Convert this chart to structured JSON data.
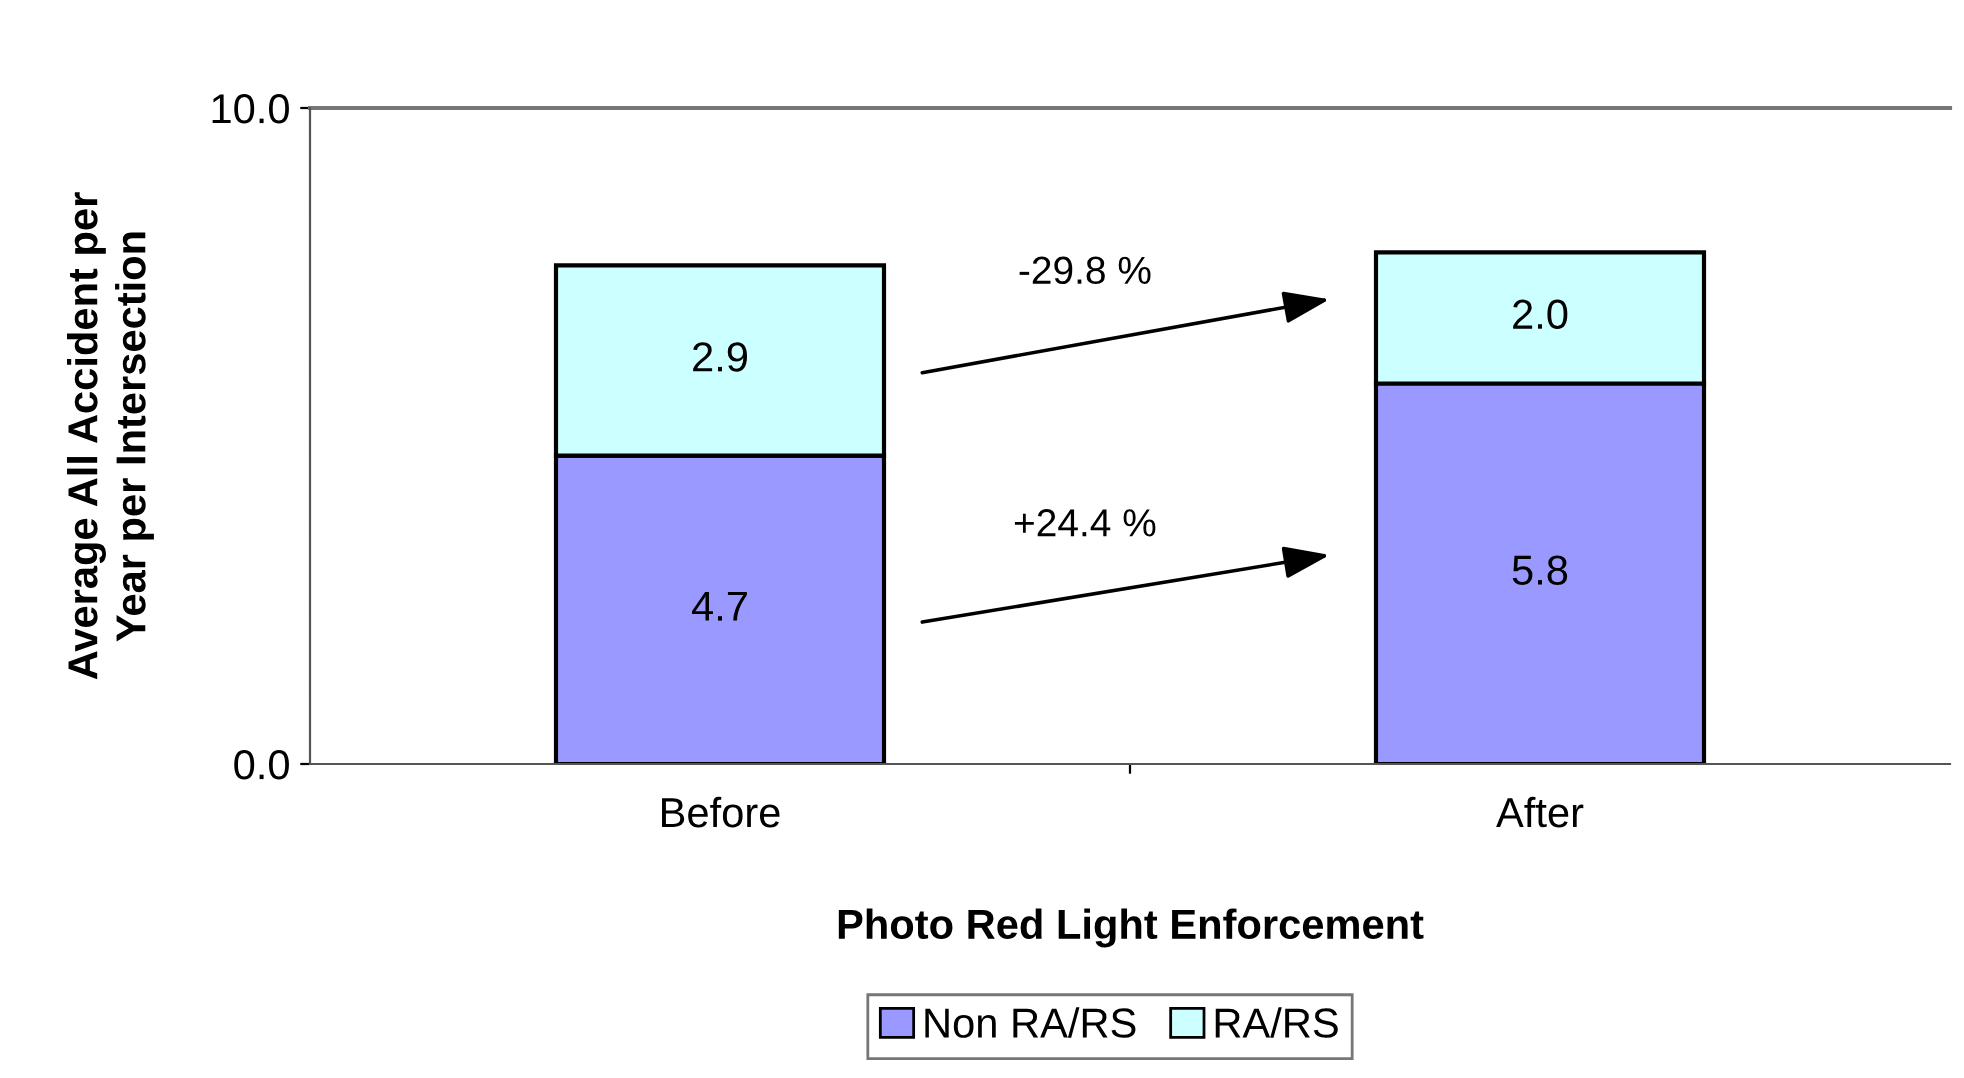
{
  "chart_data": {
    "type": "bar",
    "stacked": true,
    "categories": [
      "Before",
      "After"
    ],
    "series": [
      {
        "name": "Non RA/RS",
        "color": "#9999ff",
        "values": [
          4.7,
          5.8
        ],
        "value_labels": [
          "4.7",
          "5.8"
        ]
      },
      {
        "name": "RA/RS",
        "color": "#ccffff",
        "values": [
          2.9,
          2.0
        ],
        "value_labels": [
          "2.9",
          "2.0"
        ]
      }
    ],
    "xlabel": "Photo Red Light Enforcement",
    "ylabel": "Average All Accident per\nYear per Intersection",
    "ylim": [
      0,
      10
    ],
    "yticks": [
      {
        "value": 0,
        "label": "0.0"
      },
      {
        "value": 10,
        "label": "10.0"
      }
    ],
    "legend": "bottom",
    "grid": false,
    "annotations": [
      "-29.8 %",
      "+24.4 %"
    ]
  }
}
